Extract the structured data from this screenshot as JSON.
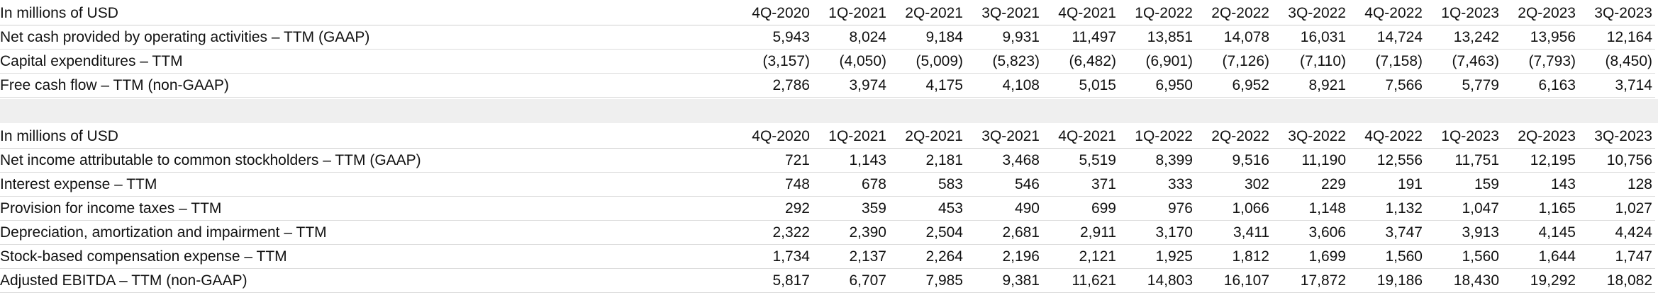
{
  "columns": [
    "4Q-2020",
    "1Q-2021",
    "2Q-2021",
    "3Q-2021",
    "4Q-2021",
    "1Q-2022",
    "2Q-2022",
    "3Q-2022",
    "4Q-2022",
    "1Q-2023",
    "2Q-2023",
    "3Q-2023"
  ],
  "table1": {
    "header_label": "In millions of USD",
    "rows": [
      {
        "label": "Net cash provided by operating activities – TTM (GAAP)",
        "values": [
          "5,943",
          "8,024",
          "9,184",
          "9,931",
          "11,497",
          "13,851",
          "14,078",
          "16,031",
          "14,724",
          "13,242",
          "13,956",
          "12,164"
        ]
      },
      {
        "label": "Capital expenditures – TTM",
        "values": [
          "(3,157)",
          "(4,050)",
          "(5,009)",
          "(5,823)",
          "(6,482)",
          "(6,901)",
          "(7,126)",
          "(7,110)",
          "(7,158)",
          "(7,463)",
          "(7,793)",
          "(8,450)"
        ]
      },
      {
        "label": "Free cash flow – TTM (non-GAAP)",
        "values": [
          "2,786",
          "3,974",
          "4,175",
          "4,108",
          "5,015",
          "6,950",
          "6,952",
          "8,921",
          "7,566",
          "5,779",
          "6,163",
          "3,714"
        ]
      }
    ]
  },
  "table2": {
    "header_label": "In millions of USD",
    "rows": [
      {
        "label": "Net income attributable to common stockholders – TTM (GAAP)",
        "values": [
          "721",
          "1,143",
          "2,181",
          "3,468",
          "5,519",
          "8,399",
          "9,516",
          "11,190",
          "12,556",
          "11,751",
          "12,195",
          "10,756"
        ]
      },
      {
        "label": "Interest expense – TTM",
        "values": [
          "748",
          "678",
          "583",
          "546",
          "371",
          "333",
          "302",
          "229",
          "191",
          "159",
          "143",
          "128"
        ]
      },
      {
        "label": "Provision for income taxes – TTM",
        "values": [
          "292",
          "359",
          "453",
          "490",
          "699",
          "976",
          "1,066",
          "1,148",
          "1,132",
          "1,047",
          "1,165",
          "1,027"
        ]
      },
      {
        "label": "Depreciation, amortization and impairment – TTM",
        "values": [
          "2,322",
          "2,390",
          "2,504",
          "2,681",
          "2,911",
          "3,170",
          "3,411",
          "3,606",
          "3,747",
          "3,913",
          "4,145",
          "4,424"
        ]
      },
      {
        "label": "Stock-based compensation expense – TTM",
        "values": [
          "1,734",
          "2,137",
          "2,264",
          "2,196",
          "2,121",
          "1,925",
          "1,812",
          "1,699",
          "1,560",
          "1,560",
          "1,644",
          "1,747"
        ]
      },
      {
        "label": "Adjusted EBITDA – TTM (non-GAAP)",
        "values": [
          "5,817",
          "6,707",
          "7,985",
          "9,381",
          "11,621",
          "14,803",
          "16,107",
          "17,872",
          "19,186",
          "18,430",
          "19,292",
          "18,082"
        ]
      }
    ]
  }
}
